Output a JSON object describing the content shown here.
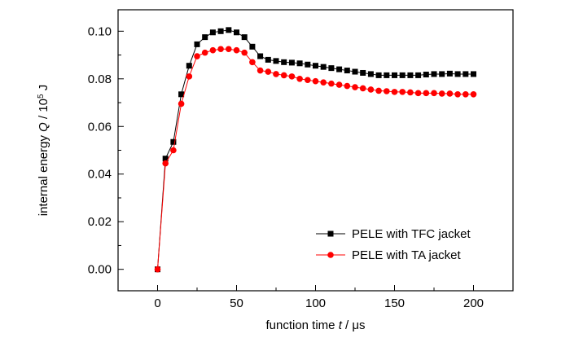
{
  "chart_data": {
    "type": "line",
    "xlabel": {
      "pre": "function time ",
      "var": "t",
      "post": " / ",
      "unit": "μs"
    },
    "ylabel": {
      "pre": "internal energy ",
      "var": "Q",
      "mid": " / 10",
      "sup": "5",
      "post": " J"
    },
    "xlim": [
      -25,
      225
    ],
    "ylim": [
      -0.009,
      0.109
    ],
    "xticks": [
      0,
      50,
      100,
      150,
      200
    ],
    "yticks": [
      0.0,
      0.02,
      0.04,
      0.06,
      0.08,
      0.1
    ],
    "legend_position": "bottom-right",
    "series": [
      {
        "name": "PELE with TFC jacket",
        "color": "#000000",
        "marker": "square",
        "x": [
          0,
          5,
          10,
          15,
          20,
          25,
          30,
          35,
          40,
          45,
          50,
          55,
          60,
          65,
          70,
          75,
          80,
          85,
          90,
          95,
          100,
          105,
          110,
          115,
          120,
          125,
          130,
          135,
          140,
          145,
          150,
          155,
          160,
          165,
          170,
          175,
          180,
          185,
          190,
          195,
          200
        ],
        "y": [
          0.0,
          0.0465,
          0.0535,
          0.0735,
          0.0855,
          0.0945,
          0.0975,
          0.0995,
          0.1,
          0.1005,
          0.0995,
          0.0975,
          0.0935,
          0.0895,
          0.088,
          0.0875,
          0.087,
          0.0868,
          0.0865,
          0.086,
          0.0855,
          0.085,
          0.0845,
          0.084,
          0.0835,
          0.083,
          0.0825,
          0.082,
          0.0815,
          0.0815,
          0.0815,
          0.0815,
          0.0815,
          0.0815,
          0.0818,
          0.082,
          0.082,
          0.0822,
          0.082,
          0.082,
          0.082
        ]
      },
      {
        "name": "PELE with TA jacket",
        "color": "#ff0000",
        "marker": "circle",
        "x": [
          0,
          5,
          10,
          15,
          20,
          25,
          30,
          35,
          40,
          45,
          50,
          55,
          60,
          65,
          70,
          75,
          80,
          85,
          90,
          95,
          100,
          105,
          110,
          115,
          120,
          125,
          130,
          135,
          140,
          145,
          150,
          155,
          160,
          165,
          170,
          175,
          180,
          185,
          190,
          195,
          200
        ],
        "y": [
          0.0,
          0.0445,
          0.05,
          0.0695,
          0.081,
          0.0895,
          0.091,
          0.092,
          0.0925,
          0.0925,
          0.092,
          0.091,
          0.087,
          0.0835,
          0.083,
          0.082,
          0.0815,
          0.081,
          0.08,
          0.0795,
          0.079,
          0.0785,
          0.078,
          0.0775,
          0.077,
          0.0765,
          0.076,
          0.0755,
          0.075,
          0.0748,
          0.0745,
          0.0745,
          0.0743,
          0.074,
          0.074,
          0.074,
          0.0738,
          0.0738,
          0.0735,
          0.0735,
          0.0735
        ]
      }
    ]
  }
}
